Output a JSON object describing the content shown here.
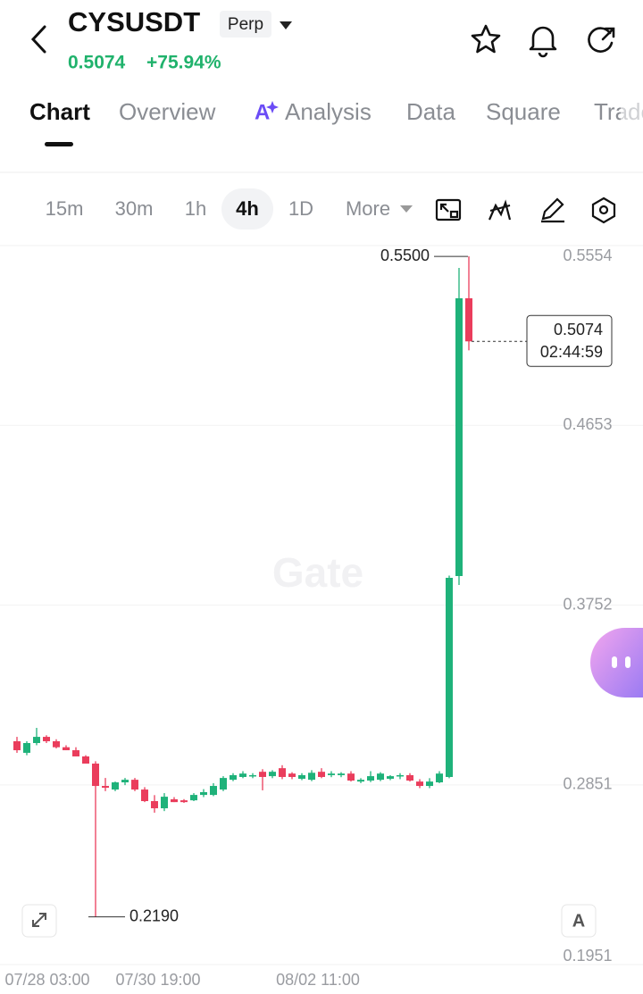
{
  "header": {
    "symbol": "CYSUSDT",
    "badge": "Perp",
    "price": "0.5074",
    "change": "+75.94%"
  },
  "tabs": [
    "Chart",
    "Overview",
    "Analysis",
    "Data",
    "Square",
    "Trade"
  ],
  "intervals": [
    "15m",
    "30m",
    "1h",
    "4h",
    "1D",
    "More"
  ],
  "watermark": "Gate",
  "chart_data": {
    "type": "candlestick",
    "ylim": [
      0.1951,
      0.5554
    ],
    "yticks": [
      0.5554,
      0.4653,
      0.3752,
      0.2851,
      0.1951
    ],
    "x_labels": [
      "07/28 03:00",
      "07/30 19:00",
      "08/02 11:00"
    ],
    "up_color": "#1fb27a",
    "down_color": "#ea3d5c",
    "grid": true,
    "open": [
      0.307,
      0.3012,
      0.3061,
      0.3092,
      0.307,
      0.304,
      0.3025,
      0.2994,
      0.2958,
      0.2846,
      0.2828,
      0.2864,
      0.2877,
      0.2828,
      0.277,
      0.2734,
      0.2779,
      0.2774,
      0.2774,
      0.2801,
      0.2801,
      0.2828,
      0.2877,
      0.2891,
      0.2895,
      0.2917,
      0.2895,
      0.2935,
      0.2908,
      0.2882,
      0.2877,
      0.2917,
      0.29,
      0.29,
      0.2908,
      0.2868,
      0.2873,
      0.2877,
      0.2882,
      0.2895,
      0.29,
      0.2868,
      0.2846,
      0.2864,
      0.2891,
      0.3898,
      0.529
    ],
    "high": [
      0.3092,
      0.307,
      0.3137,
      0.31,
      0.308,
      0.305,
      0.304,
      0.3,
      0.297,
      0.2886,
      0.2868,
      0.2886,
      0.2886,
      0.284,
      0.28,
      0.281,
      0.279,
      0.278,
      0.281,
      0.283,
      0.286,
      0.2895,
      0.291,
      0.292,
      0.291,
      0.293,
      0.2925,
      0.295,
      0.2915,
      0.291,
      0.2925,
      0.2935,
      0.292,
      0.2915,
      0.292,
      0.2885,
      0.292,
      0.2915,
      0.29,
      0.291,
      0.291,
      0.288,
      0.2885,
      0.292,
      0.39,
      0.5442,
      0.55
    ],
    "low": [
      0.3012,
      0.3,
      0.305,
      0.3061,
      0.3034,
      0.3025,
      0.2994,
      0.2958,
      0.219,
      0.282,
      0.282,
      0.285,
      0.282,
      0.2765,
      0.2712,
      0.272,
      0.2765,
      0.2761,
      0.277,
      0.279,
      0.2795,
      0.282,
      0.287,
      0.2885,
      0.2885,
      0.2824,
      0.2885,
      0.288,
      0.288,
      0.2875,
      0.287,
      0.2885,
      0.289,
      0.289,
      0.2868,
      0.286,
      0.2865,
      0.287,
      0.2875,
      0.288,
      0.2868,
      0.2835,
      0.2835,
      0.286,
      0.2885,
      0.3853,
      0.5029
    ],
    "close": [
      0.3025,
      0.3061,
      0.3092,
      0.307,
      0.304,
      0.3025,
      0.2994,
      0.2958,
      0.2846,
      0.2837,
      0.2864,
      0.2877,
      0.2828,
      0.277,
      0.2734,
      0.2792,
      0.2765,
      0.2765,
      0.2801,
      0.2815,
      0.2846,
      0.2886,
      0.29,
      0.2908,
      0.29,
      0.2891,
      0.2917,
      0.2891,
      0.2891,
      0.29,
      0.2912,
      0.2891,
      0.2908,
      0.2908,
      0.2873,
      0.2877,
      0.2895,
      0.2908,
      0.2895,
      0.29,
      0.2873,
      0.2846,
      0.2868,
      0.2908,
      0.3889,
      0.529,
      0.5074
    ],
    "high_label": {
      "value": 0.55,
      "label": "0.5500"
    },
    "low_label": {
      "value": 0.219,
      "label": "0.2190"
    },
    "last_price": 0.5074,
    "countdown": "02:44:59"
  }
}
